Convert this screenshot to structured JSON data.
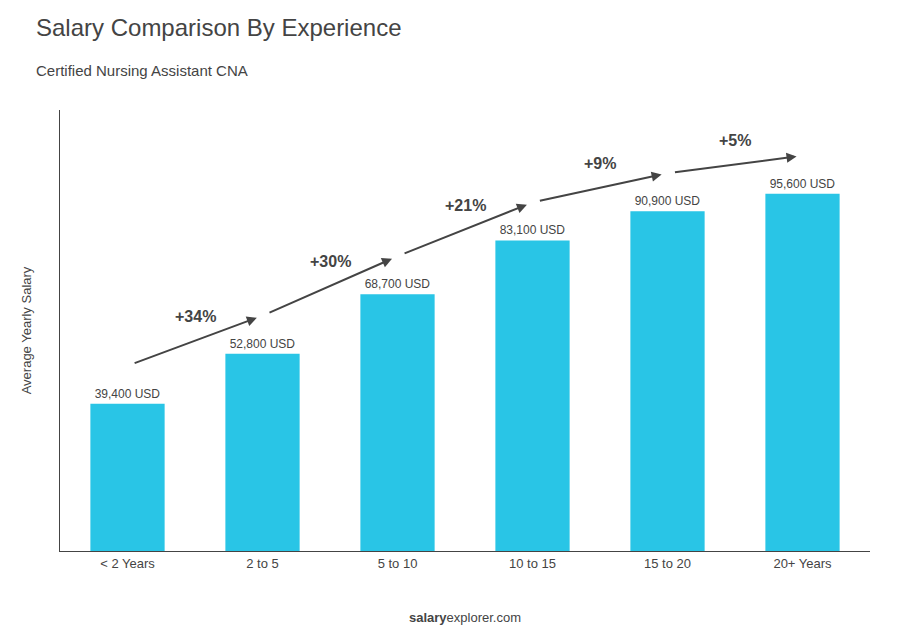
{
  "chart_data": {
    "type": "bar",
    "title": "Salary Comparison By Experience",
    "subtitle": "Certified Nursing Assistant CNA",
    "ylabel": "Average Yearly Salary",
    "categories": [
      "< 2 Years",
      "2 to 5",
      "5 to 10",
      "10 to 15",
      "15 to 20",
      "20+ Years"
    ],
    "values": [
      39400,
      52800,
      68700,
      83100,
      90900,
      95600
    ],
    "value_labels": [
      "39,400 USD",
      "52,800 USD",
      "68,700 USD",
      "83,100 USD",
      "90,900 USD",
      "95,600 USD"
    ],
    "data_labels": true,
    "color": "#29C5E6",
    "annotations": [
      "+34%",
      "+30%",
      "+21%",
      "+9%",
      "+5%"
    ],
    "watermark": [
      "salary",
      "explorer.com"
    ],
    "ylim": [
      0,
      118000
    ],
    "yticks": [],
    "grid": false,
    "tick_labels": "x"
  }
}
